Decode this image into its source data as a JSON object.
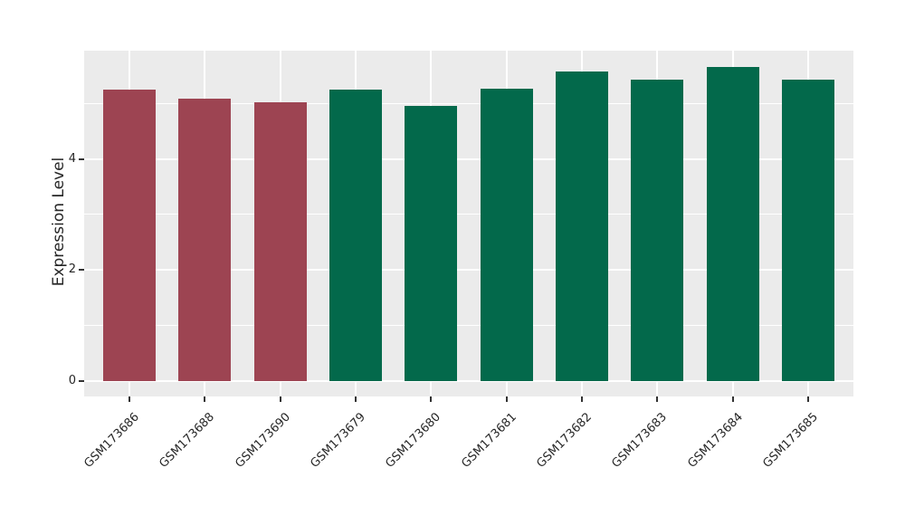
{
  "figure": {
    "background": "#FFFFFF",
    "panel_background": "#EBEBEB",
    "grid_color": "#FFFFFF",
    "tick_mark_color": "#333333",
    "text_color": "#262626"
  },
  "chart_data": {
    "type": "bar",
    "title": "",
    "xlabel": "",
    "ylabel": "Expression Level",
    "categories": [
      "GSM173686",
      "GSM173688",
      "GSM173690",
      "GSM173679",
      "GSM173680",
      "GSM173681",
      "GSM173682",
      "GSM173683",
      "GSM173684",
      "GSM173685"
    ],
    "values": [
      5.25,
      5.08,
      5.02,
      5.25,
      4.96,
      5.26,
      5.57,
      5.43,
      5.65,
      5.43
    ],
    "bar_colors": [
      "#9D4452",
      "#9D4452",
      "#9D4452",
      "#03694B",
      "#03694B",
      "#03694B",
      "#03694B",
      "#03694B",
      "#03694B",
      "#03694B"
    ],
    "group_colors": {
      "left_group_red": "#9D4452",
      "right_group_green": "#03694B"
    },
    "ytick_labels": [
      "0",
      "2",
      "4"
    ],
    "yticks": [
      0,
      2,
      4
    ],
    "minor_yticks": [
      1,
      3,
      5
    ],
    "ylim": [
      -0.28,
      5.95
    ],
    "x_tick_rotation_deg": 45,
    "grid": "white major gridlines at yticks and category centers, white minor gridlines at 1/3/5",
    "legend": "none"
  }
}
